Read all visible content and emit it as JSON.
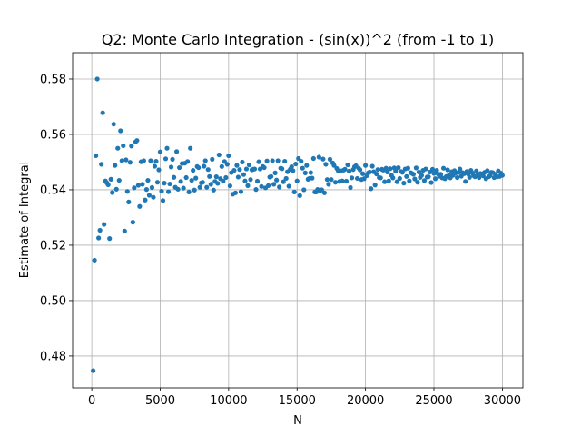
{
  "chart_data": {
    "type": "scatter",
    "title": "Q2: Monte Carlo Integration - (sin(x))^2 (from -1 to 1)",
    "xlabel": "N",
    "ylabel": "Estimate of Integral",
    "xlim": [
      -1400,
      31500
    ],
    "ylim": [
      0.4685,
      0.5895
    ],
    "xticks": [
      0,
      5000,
      10000,
      15000,
      20000,
      25000,
      30000
    ],
    "xtick_labels": [
      "0",
      "5000",
      "10000",
      "15000",
      "20000",
      "25000",
      "30000"
    ],
    "yticks": [
      0.48,
      0.5,
      0.52,
      0.54,
      0.56,
      0.58
    ],
    "ytick_labels": [
      "0.48",
      "0.50",
      "0.52",
      "0.54",
      "0.56",
      "0.58"
    ],
    "grid": true,
    "marker_color": "#1f77b4",
    "series": [
      {
        "x": [
          100,
          200,
          300,
          400,
          500,
          600,
          700,
          800,
          900,
          1000,
          1100,
          1200,
          1300,
          1400,
          1500,
          1600,
          1700,
          1800,
          1900,
          2000,
          2100,
          2200,
          2300,
          2400,
          2500,
          2600,
          2700,
          2800,
          2900,
          3000,
          3100,
          3200,
          3300,
          3400,
          3500,
          3600,
          3700,
          3800,
          3900,
          4000,
          4100,
          4200,
          4300,
          4400,
          4500,
          4600,
          4700,
          4800,
          4900,
          5000,
          5100,
          5200,
          5300,
          5400,
          5500,
          5600,
          5700,
          5800,
          5900,
          6000,
          6100,
          6200,
          6300,
          6400,
          6500,
          6600,
          6700,
          6800,
          6900,
          7000,
          7100,
          7200,
          7300,
          7400,
          7500,
          7600,
          7700,
          7800,
          7900,
          8000,
          8100,
          8200,
          8300,
          8400,
          8500,
          8600,
          8700,
          8800,
          8900,
          9000,
          9100,
          9200,
          9300,
          9400,
          9500,
          9600,
          9700,
          9800,
          9900,
          10000,
          10100,
          10200,
          10300,
          10400,
          10500,
          10600,
          10700,
          10800,
          10900,
          11000,
          11100,
          11200,
          11300,
          11400,
          11500,
          11600,
          11700,
          11800,
          11900,
          12000,
          12100,
          12200,
          12300,
          12400,
          12500,
          12600,
          12700,
          12800,
          12900,
          13000,
          13100,
          13200,
          13300,
          13400,
          13500,
          13600,
          13700,
          13800,
          13900,
          14000,
          14100,
          14200,
          14300,
          14400,
          14500,
          14600,
          14700,
          14800,
          14900,
          15000,
          15100,
          15200,
          15300,
          15400,
          15500,
          15600,
          15700,
          15800,
          15900,
          16000,
          16100,
          16200,
          16300,
          16400,
          16500,
          16600,
          16700,
          16800,
          16900,
          17000,
          17100,
          17200,
          17300,
          17400,
          17500,
          17600,
          17700,
          17800,
          17900,
          18000,
          18100,
          18200,
          18300,
          18400,
          18500,
          18600,
          18700,
          18800,
          18900,
          19000,
          19100,
          19200,
          19300,
          19400,
          19500,
          19600,
          19700,
          19800,
          19900,
          20000,
          20100,
          20200,
          20300,
          20400,
          20500,
          20600,
          20700,
          20800,
          20900,
          21000,
          21100,
          21200,
          21300,
          21400,
          21500,
          21600,
          21700,
          21800,
          21900,
          22000,
          22100,
          22200,
          22300,
          22400,
          22500,
          22600,
          22700,
          22800,
          22900,
          23000,
          23100,
          23200,
          23300,
          23400,
          23500,
          23600,
          23700,
          23800,
          23900,
          24000,
          24100,
          24200,
          24300,
          24400,
          24500,
          24600,
          24700,
          24800,
          24900,
          25000,
          25100,
          25200,
          25300,
          25400,
          25500,
          25600,
          25700,
          25800,
          25900,
          26000,
          26100,
          26200,
          26300,
          26400,
          26500,
          26600,
          26700,
          26800,
          26900,
          27000,
          27100,
          27200,
          27300,
          27400,
          27500,
          27600,
          27700,
          27800,
          27900,
          28000,
          28100,
          28200,
          28300,
          28400,
          28500,
          28600,
          28700,
          28800,
          28900,
          29000,
          29100,
          29200,
          29300,
          29400,
          29500,
          29600,
          29700,
          29800,
          29900,
          30000
        ],
        "y": [
          0.4747,
          0.5146,
          0.5523,
          0.58,
          0.5226,
          0.5254,
          0.5492,
          0.5678,
          0.5275,
          0.5432,
          0.5425,
          0.5418,
          0.5224,
          0.5438,
          0.539,
          0.5637,
          0.5488,
          0.5402,
          0.555,
          0.5434,
          0.5613,
          0.5505,
          0.5559,
          0.5251,
          0.5508,
          0.5394,
          0.5356,
          0.5499,
          0.5558,
          0.5283,
          0.5407,
          0.5573,
          0.5578,
          0.5416,
          0.534,
          0.5501,
          0.542,
          0.5505,
          0.5363,
          0.5401,
          0.5434,
          0.538,
          0.5505,
          0.5408,
          0.5373,
          0.5485,
          0.5503,
          0.5427,
          0.5472,
          0.5537,
          0.5395,
          0.5361,
          0.5424,
          0.5512,
          0.555,
          0.5393,
          0.5421,
          0.5482,
          0.551,
          0.5445,
          0.5409,
          0.5538,
          0.5402,
          0.548,
          0.543,
          0.5495,
          0.5406,
          0.5496,
          0.5444,
          0.5502,
          0.5392,
          0.555,
          0.5434,
          0.547,
          0.5399,
          0.5442,
          0.5484,
          0.548,
          0.5409,
          0.5425,
          0.5427,
          0.5485,
          0.5505,
          0.5409,
          0.5473,
          0.5448,
          0.542,
          0.551,
          0.5399,
          0.543,
          0.5447,
          0.5423,
          0.5526,
          0.544,
          0.5484,
          0.5431,
          0.5502,
          0.5444,
          0.5492,
          0.5523,
          0.5414,
          0.5462,
          0.5384,
          0.547,
          0.5389,
          0.5488,
          0.5446,
          0.5473,
          0.5393,
          0.55,
          0.5455,
          0.5432,
          0.5475,
          0.5415,
          0.549,
          0.5437,
          0.5472,
          0.5474,
          0.5475,
          0.5401,
          0.5431,
          0.5501,
          0.5475,
          0.5412,
          0.5484,
          0.548,
          0.5407,
          0.5504,
          0.5415,
          0.5446,
          0.5448,
          0.5505,
          0.542,
          0.5461,
          0.5435,
          0.5505,
          0.541,
          0.5478,
          0.5476,
          0.5429,
          0.5503,
          0.5441,
          0.5465,
          0.5413,
          0.5474,
          0.5483,
          0.5469,
          0.5392,
          0.5493,
          0.5432,
          0.5513,
          0.5379,
          0.5503,
          0.5478,
          0.54,
          0.5461,
          0.5488,
          0.5438,
          0.5441,
          0.5462,
          0.5442,
          0.5513,
          0.5392,
          0.5392,
          0.5401,
          0.5518,
          0.5397,
          0.54,
          0.5511,
          0.5389,
          0.5492,
          0.5437,
          0.542,
          0.551,
          0.5437,
          0.5497,
          0.5488,
          0.5427,
          0.5477,
          0.5469,
          0.543,
          0.5468,
          0.5432,
          0.5471,
          0.5474,
          0.5431,
          0.549,
          0.5467,
          0.5408,
          0.5443,
          0.5473,
          0.5483,
          0.5487,
          0.5441,
          0.5478,
          0.5472,
          0.5437,
          0.5458,
          0.544,
          0.5488,
          0.5451,
          0.5461,
          0.5464,
          0.5404,
          0.5485,
          0.5465,
          0.5417,
          0.5457,
          0.5473,
          0.5444,
          0.5443,
          0.5474,
          0.5471,
          0.5429,
          0.5478,
          0.5464,
          0.5432,
          0.5476,
          0.5452,
          0.5443,
          0.5479,
          0.5467,
          0.5429,
          0.548,
          0.5441,
          0.5466,
          0.5463,
          0.5424,
          0.5475,
          0.5448,
          0.5478,
          0.5432,
          0.5462,
          0.5459,
          0.5456,
          0.5439,
          0.5479,
          0.5427,
          0.5464,
          0.5445,
          0.5452,
          0.547,
          0.5433,
          0.5475,
          0.5446,
          0.5447,
          0.5464,
          0.5426,
          0.5474,
          0.5459,
          0.544,
          0.547,
          0.5457,
          0.5449,
          0.5456,
          0.5443,
          0.5478,
          0.544,
          0.5448,
          0.5472,
          0.5452,
          0.5443,
          0.5465,
          0.5452,
          0.5469,
          0.5461,
          0.5444,
          0.5463,
          0.5475,
          0.5449,
          0.5462,
          0.5458,
          0.543,
          0.5466,
          0.5457,
          0.5445,
          0.547,
          0.5461,
          0.5451,
          0.5447,
          0.5468,
          0.5454,
          0.5444,
          0.5459,
          0.5457,
          0.545,
          0.5463,
          0.544,
          0.5469,
          0.5447,
          0.5451,
          0.5463,
          0.5462,
          0.5444,
          0.5456,
          0.5447,
          0.5468,
          0.5448,
          0.546,
          0.5452
        ]
      }
    ]
  }
}
